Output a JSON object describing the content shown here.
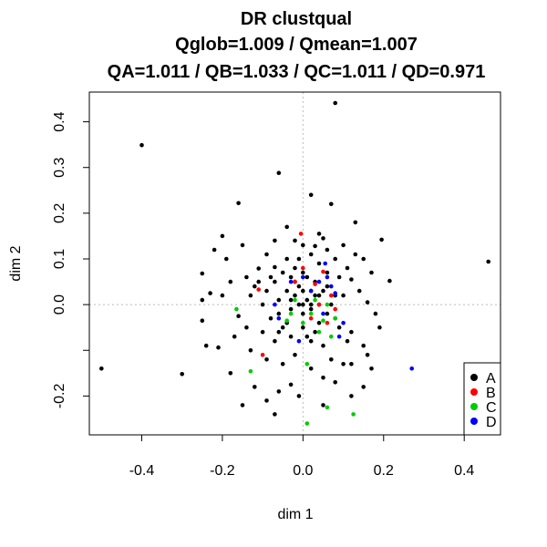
{
  "chart_data": {
    "type": "scatter",
    "title_lines": [
      "DR clustqual",
      "Qglob=1.009 / Qmean=1.007",
      "QA=1.011 / QB=1.033 / QC=1.011 / QD=0.971"
    ],
    "xlabel": "dim 1",
    "ylabel": "dim 2",
    "xlim": [
      -0.53,
      0.49
    ],
    "ylim": [
      -0.285,
      0.465
    ],
    "x_ticks": [
      -0.4,
      -0.2,
      0.0,
      0.2,
      0.4
    ],
    "x_tick_labels": [
      "-0.4",
      "-0.2",
      "0.0",
      "0.2",
      "0.4"
    ],
    "y_ticks": [
      -0.2,
      -0.1,
      0.0,
      0.1,
      0.2,
      0.3,
      0.4
    ],
    "y_tick_labels": [
      "-0.2",
      "",
      "0.0",
      "0.1",
      "0.2",
      "0.3",
      "0.4"
    ],
    "reference_lines": {
      "x": 0,
      "y": 0,
      "style": "dotted",
      "color": "#bbbbbb"
    },
    "legend_position": "bottom-right",
    "series": [
      {
        "name": "A",
        "color": "#000000",
        "points": [
          [
            0.08,
            0.441
          ],
          [
            -0.4,
            0.349
          ],
          [
            -0.06,
            0.288
          ],
          [
            0.46,
            0.094
          ],
          [
            -0.5,
            -0.14
          ],
          [
            -0.3,
            -0.152
          ],
          [
            -0.16,
            0.222
          ],
          [
            -0.2,
            0.15
          ],
          [
            0.07,
            0.22
          ],
          [
            0.195,
            0.142
          ],
          [
            0.215,
            0.052
          ],
          [
            -0.25,
            0.068
          ],
          [
            -0.23,
            0.025
          ],
          [
            -0.24,
            -0.09
          ],
          [
            -0.16,
            -0.025
          ],
          [
            -0.14,
            -0.05
          ],
          [
            -0.25,
            -0.035
          ],
          [
            -0.21,
            -0.094
          ],
          [
            -0.11,
            0.079
          ],
          [
            -0.09,
            0.11
          ],
          [
            -0.07,
            0.082
          ],
          [
            -0.04,
            0.1
          ],
          [
            -0.02,
            0.14
          ],
          [
            0.0,
            0.13
          ],
          [
            0.03,
            0.128
          ],
          [
            0.05,
            0.145
          ],
          [
            0.06,
            0.12
          ],
          [
            0.1,
            0.13
          ],
          [
            0.13,
            0.11
          ],
          [
            0.15,
            0.1
          ],
          [
            0.12,
            0.055
          ],
          [
            0.14,
            0.03
          ],
          [
            0.16,
            0.005
          ],
          [
            0.18,
            -0.02
          ],
          [
            0.12,
            -0.06
          ],
          [
            0.15,
            -0.09
          ],
          [
            0.17,
            -0.14
          ],
          [
            0.15,
            -0.18
          ],
          [
            0.1,
            -0.13
          ],
          [
            0.07,
            -0.12
          ],
          [
            0.05,
            -0.09
          ],
          [
            0.02,
            -0.08
          ],
          [
            -0.02,
            -0.11
          ],
          [
            -0.05,
            -0.13
          ],
          [
            -0.09,
            -0.12
          ],
          [
            -0.13,
            -0.1
          ],
          [
            -0.17,
            -0.07
          ],
          [
            -0.2,
            0.02
          ],
          [
            -0.12,
            0.04
          ],
          [
            -0.07,
            0.05
          ],
          [
            -0.03,
            0.06
          ],
          [
            0.0,
            0.07
          ],
          [
            0.03,
            0.05
          ],
          [
            0.06,
            0.07
          ],
          [
            0.09,
            0.06
          ],
          [
            0.1,
            0.02
          ],
          [
            0.08,
            -0.03
          ],
          [
            0.04,
            -0.04
          ],
          [
            0.0,
            -0.05
          ],
          [
            -0.04,
            -0.04
          ],
          [
            -0.08,
            -0.03
          ],
          [
            -0.1,
            0.0
          ],
          [
            -0.06,
            0.01
          ],
          [
            -0.02,
            0.02
          ],
          [
            0.01,
            0.01
          ],
          [
            0.04,
            0.0
          ],
          [
            0.07,
            0.0
          ],
          [
            0.05,
            0.03
          ],
          [
            0.02,
            0.03
          ],
          [
            -0.01,
            0.04
          ],
          [
            -0.04,
            0.03
          ],
          [
            -0.03,
            -0.01
          ],
          [
            0.0,
            -0.02
          ],
          [
            0.02,
            -0.01
          ],
          [
            -0.01,
            0.0
          ],
          [
            0.03,
            0.02
          ],
          [
            -0.06,
            -0.02
          ],
          [
            0.06,
            -0.02
          ],
          [
            0.01,
            0.06
          ],
          [
            -0.02,
            0.08
          ],
          [
            0.04,
            0.09
          ],
          [
            0.02,
            0.11
          ],
          [
            -0.01,
            0.1
          ],
          [
            0.08,
            0.1
          ],
          [
            0.11,
            0.08
          ],
          [
            0.09,
            -0.05
          ],
          [
            0.11,
            -0.08
          ],
          [
            -0.07,
            -0.08
          ],
          [
            -0.1,
            -0.06
          ],
          [
            -0.11,
            0.05
          ],
          [
            -0.14,
            0.06
          ],
          [
            -0.13,
            0.02
          ],
          [
            -0.09,
            0.03
          ],
          [
            -0.05,
            0.07
          ],
          [
            0.01,
            -0.07
          ],
          [
            0.03,
            -0.06
          ],
          [
            -0.03,
            -0.07
          ],
          [
            -0.06,
            -0.06
          ],
          [
            -0.08,
            0.06
          ],
          [
            0.06,
            0.04
          ],
          [
            0.08,
            0.02
          ],
          [
            0.0,
            0.03
          ],
          [
            -0.02,
            0.05
          ],
          [
            0.0,
            0.0
          ],
          [
            0.02,
            0.0
          ],
          [
            -0.03,
            0.01
          ],
          [
            0.04,
            0.02
          ],
          [
            -0.05,
            -0.05
          ],
          [
            -0.07,
            0.14
          ],
          [
            -0.04,
            0.17
          ],
          [
            -0.12,
            -0.18
          ],
          [
            -0.06,
            -0.19
          ],
          [
            -0.09,
            -0.21
          ],
          [
            -0.03,
            -0.175
          ],
          [
            -0.01,
            -0.2
          ],
          [
            0.05,
            -0.16
          ],
          [
            0.08,
            -0.17
          ],
          [
            0.12,
            -0.13
          ],
          [
            0.16,
            -0.11
          ],
          [
            -0.18,
            -0.15
          ],
          [
            -0.19,
            0.1
          ],
          [
            -0.22,
            0.12
          ],
          [
            0.13,
            0.18
          ],
          [
            0.02,
            0.24
          ],
          [
            0.04,
            0.155
          ],
          [
            -0.15,
            0.13
          ],
          [
            -0.18,
            0.05
          ],
          [
            0.17,
            0.07
          ],
          [
            0.19,
            -0.05
          ],
          [
            0.02,
            -0.14
          ],
          [
            -0.15,
            -0.22
          ],
          [
            -0.07,
            -0.24
          ],
          [
            0.05,
            -0.22
          ],
          [
            0.12,
            -0.2
          ],
          [
            -0.25,
            0.01
          ]
        ]
      },
      {
        "name": "B",
        "color": "#ff0000",
        "points": [
          [
            -0.005,
            0.155
          ],
          [
            -0.11,
            0.033
          ],
          [
            -0.1,
            -0.11
          ],
          [
            0.05,
            0.072
          ],
          [
            0.07,
            0.02
          ],
          [
            0.03,
            0.045
          ],
          [
            0.04,
            0.0
          ],
          [
            0.02,
            -0.03
          ],
          [
            -0.02,
            0.05
          ],
          [
            0.06,
            -0.04
          ],
          [
            0.0,
            0.08
          ],
          [
            0.08,
            -0.01
          ]
        ]
      },
      {
        "name": "C",
        "color": "#00cc00",
        "points": [
          [
            -0.165,
            -0.01
          ],
          [
            -0.13,
            -0.146
          ],
          [
            0.01,
            -0.26
          ],
          [
            0.06,
            -0.225
          ],
          [
            0.125,
            -0.24
          ],
          [
            0.01,
            -0.13
          ],
          [
            -0.04,
            -0.035
          ],
          [
            0.02,
            -0.02
          ],
          [
            0.05,
            -0.035
          ],
          [
            0.07,
            -0.07
          ],
          [
            -0.02,
            0.01
          ],
          [
            0.03,
            0.01
          ],
          [
            0.06,
            0.0
          ],
          [
            0.0,
            -0.04
          ],
          [
            0.04,
            -0.06
          ],
          [
            -0.03,
            -0.02
          ],
          [
            0.08,
            -0.03
          ]
        ]
      },
      {
        "name": "D",
        "color": "#0000ff",
        "points": [
          [
            0.27,
            -0.14
          ],
          [
            0.055,
            0.09
          ],
          [
            0.08,
            0.025
          ],
          [
            0.1,
            -0.04
          ],
          [
            0.09,
            -0.07
          ],
          [
            -0.07,
            0.0
          ],
          [
            -0.01,
            -0.08
          ],
          [
            0.04,
            0.05
          ],
          [
            0.06,
            0.06
          ],
          [
            0.0,
            0.06
          ],
          [
            0.02,
            0.03
          ],
          [
            -0.03,
            0.05
          ],
          [
            0.05,
            -0.02
          ],
          [
            0.07,
            0.04
          ],
          [
            -0.06,
            -0.03
          ]
        ]
      }
    ]
  }
}
